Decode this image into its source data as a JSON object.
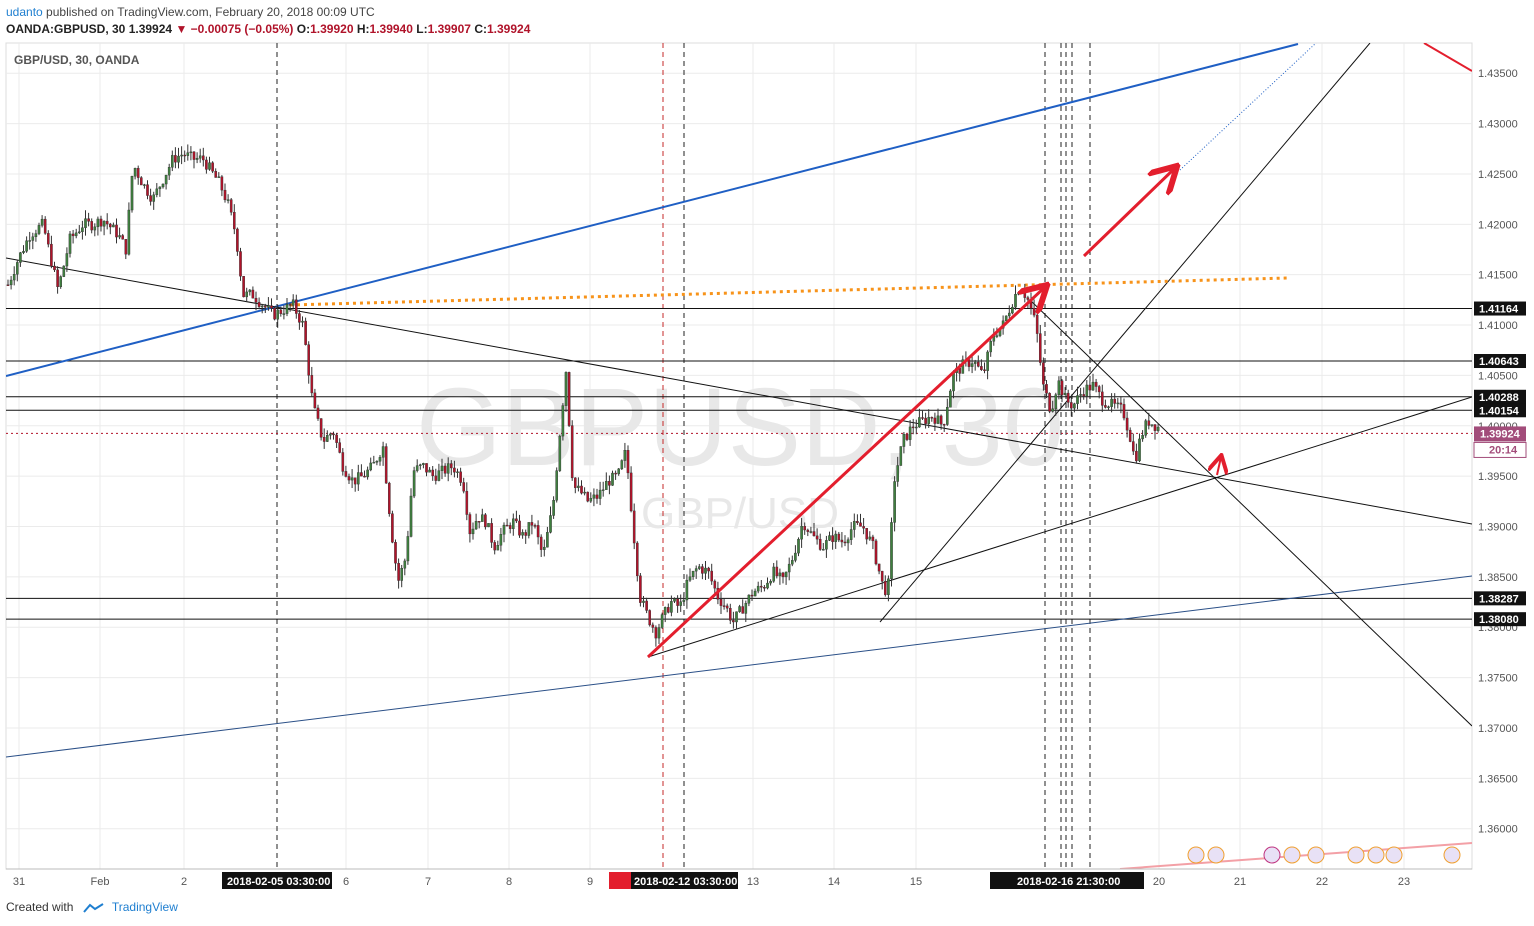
{
  "header": {
    "publisher": "udanto",
    "published_text": "published on TradingView.com, February 20, 2018 00:09 UTC",
    "symbol": "OANDA:GBPUSD, 30",
    "last": "1.39924",
    "change": "−0.00075 (−0.05%)",
    "open_label": "O:",
    "open": "1.39920",
    "high_label": "H:",
    "high": "1.39940",
    "low_label": "L:",
    "low": "1.39907",
    "close_label": "C:",
    "close": "1.39924"
  },
  "legend": "GBP/USD, 30, OANDA",
  "watermark": {
    "symbol": "GBPUSD, 30",
    "pair": "GBP/USD"
  },
  "footer": {
    "created_with": "Created with",
    "brand": "TradingView"
  },
  "colors": {
    "up": "#3f7f3f",
    "down": "#b0132a",
    "blue": "#1f5fc4",
    "orange": "#f7931a",
    "red_arrow": "#e31e2d",
    "grid": "#ebebeb",
    "price_tag": "#a24c7a"
  },
  "chart_data": {
    "type": "candlestick",
    "symbol": "GBP/USD",
    "interval": "30",
    "ylim": [
      1.356,
      1.438
    ],
    "y_ticks": [
      "1.36000",
      "1.36500",
      "1.37000",
      "1.37500",
      "1.38000",
      "1.38500",
      "1.39000",
      "1.39500",
      "1.40000",
      "1.40500",
      "1.41000",
      "1.41500",
      "1.42000",
      "1.42500",
      "1.43000",
      "1.43500"
    ],
    "x_ticks": [
      "31",
      "Feb",
      "2",
      "6",
      "7",
      "8",
      "9",
      "13",
      "14",
      "15",
      "20",
      "21",
      "22",
      "23"
    ],
    "x_highlight_labels": [
      "2018-02-05 03:30:00",
      "2018-02-12 03:30:00",
      "2018-02-16 21:30:00"
    ],
    "horizontal_levels": [
      "1.41164",
      "1.40643",
      "1.40288",
      "1.40154",
      "1.38287",
      "1.38080"
    ],
    "current_price": {
      "value": "1.39924",
      "countdown": "20:14"
    },
    "approx_close_path": [
      [
        0,
        1.414
      ],
      [
        10,
        1.4165
      ],
      [
        22,
        1.419
      ],
      [
        35,
        1.42
      ],
      [
        50,
        1.4135
      ],
      [
        62,
        1.4185
      ],
      [
        75,
        1.42
      ],
      [
        85,
        1.42
      ],
      [
        95,
        1.4205
      ],
      [
        110,
        1.419
      ],
      [
        118,
        1.4175
      ],
      [
        125,
        1.426
      ],
      [
        135,
        1.424
      ],
      [
        145,
        1.4225
      ],
      [
        155,
        1.4245
      ],
      [
        165,
        1.4265
      ],
      [
        175,
        1.427
      ],
      [
        185,
        1.4265
      ],
      [
        195,
        1.4265
      ],
      [
        205,
        1.425
      ],
      [
        212,
        1.424
      ],
      [
        220,
        1.422
      ],
      [
        228,
        1.419
      ],
      [
        235,
        1.413
      ],
      [
        245,
        1.413
      ],
      [
        255,
        1.412
      ],
      [
        265,
        1.411
      ],
      [
        275,
        1.4115
      ],
      [
        285,
        1.412
      ],
      [
        295,
        1.41
      ],
      [
        305,
        1.402
      ],
      [
        315,
        1.3985
      ],
      [
        325,
        1.3995
      ],
      [
        335,
        1.396
      ],
      [
        345,
        1.3945
      ],
      [
        355,
        1.395
      ],
      [
        365,
        1.396
      ],
      [
        375,
        1.398
      ],
      [
        383,
        1.39
      ],
      [
        390,
        1.3845
      ],
      [
        398,
        1.387
      ],
      [
        405,
        1.3955
      ],
      [
        415,
        1.396
      ],
      [
        425,
        1.395
      ],
      [
        435,
        1.3955
      ],
      [
        445,
        1.396
      ],
      [
        455,
        1.3945
      ],
      [
        462,
        1.3895
      ],
      [
        470,
        1.391
      ],
      [
        478,
        1.3905
      ],
      [
        486,
        1.388
      ],
      [
        495,
        1.3895
      ],
      [
        505,
        1.3905
      ],
      [
        515,
        1.389
      ],
      [
        525,
        1.3905
      ],
      [
        535,
        1.387
      ],
      [
        545,
        1.392
      ],
      [
        552,
        1.3995
      ],
      [
        558,
        1.4055
      ],
      [
        565,
        1.394
      ],
      [
        572,
        1.3935
      ],
      [
        580,
        1.3925
      ],
      [
        590,
        1.393
      ],
      [
        600,
        1.3945
      ],
      [
        610,
        1.395
      ],
      [
        618,
        1.3975
      ],
      [
        625,
        1.39
      ],
      [
        632,
        1.383
      ],
      [
        640,
        1.381
      ],
      [
        648,
        1.3795
      ],
      [
        655,
        1.381
      ],
      [
        663,
        1.3825
      ],
      [
        672,
        1.382
      ],
      [
        680,
        1.3845
      ],
      [
        690,
        1.386
      ],
      [
        700,
        1.3855
      ],
      [
        710,
        1.383
      ],
      [
        718,
        1.382
      ],
      [
        725,
        1.3805
      ],
      [
        735,
        1.382
      ],
      [
        745,
        1.3835
      ],
      [
        755,
        1.384
      ],
      [
        765,
        1.3855
      ],
      [
        775,
        1.3845
      ],
      [
        785,
        1.387
      ],
      [
        795,
        1.3905
      ],
      [
        805,
        1.389
      ],
      [
        815,
        1.388
      ],
      [
        825,
        1.389
      ],
      [
        835,
        1.3885
      ],
      [
        845,
        1.39
      ],
      [
        855,
        1.39
      ],
      [
        865,
        1.388
      ],
      [
        875,
        1.384
      ],
      [
        880,
        1.3835
      ],
      [
        886,
        1.3945
      ],
      [
        895,
        1.3985
      ],
      [
        905,
        1.4
      ],
      [
        915,
        1.4005
      ],
      [
        925,
        1.401
      ],
      [
        935,
        1.4
      ],
      [
        945,
        1.405
      ],
      [
        955,
        1.406
      ],
      [
        965,
        1.4065
      ],
      [
        975,
        1.405
      ],
      [
        985,
        1.409
      ],
      [
        995,
        1.41
      ],
      [
        1005,
        1.4125
      ],
      [
        1012,
        1.414
      ],
      [
        1020,
        1.4125
      ],
      [
        1028,
        1.41
      ],
      [
        1035,
        1.404
      ],
      [
        1043,
        1.4015
      ],
      [
        1050,
        1.4045
      ],
      [
        1058,
        1.4025
      ],
      [
        1065,
        1.402
      ],
      [
        1075,
        1.4035
      ],
      [
        1085,
        1.404
      ],
      [
        1095,
        1.4025
      ],
      [
        1105,
        1.402
      ],
      [
        1115,
        1.4015
      ],
      [
        1122,
        1.399
      ],
      [
        1127,
        1.3965
      ],
      [
        1133,
        1.399
      ],
      [
        1140,
        1.4005
      ],
      [
        1148,
        1.4
      ],
      [
        1155,
        1.3995
      ],
      [
        1160,
        1.3992
      ]
    ]
  }
}
